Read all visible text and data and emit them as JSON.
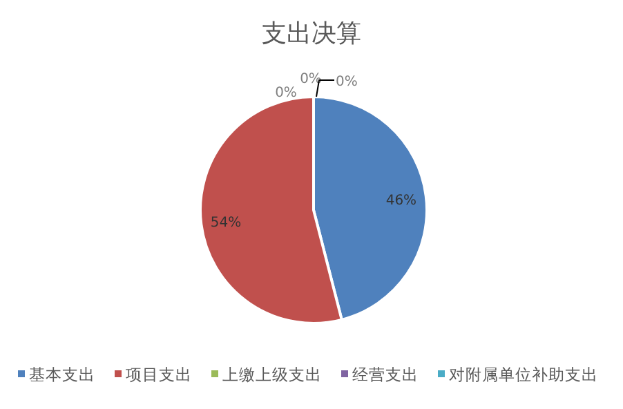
{
  "chart_data": {
    "type": "pie",
    "title": "支出决算",
    "categories": [
      "基本支出",
      "项目支出",
      "上缴上级支出",
      "经营支出",
      "对附属单位补助支出"
    ],
    "values": [
      46,
      54,
      0,
      0,
      0
    ],
    "colors": [
      "#4f81bd",
      "#c0504d",
      "#9bbb59",
      "#8064a2",
      "#4bacc6"
    ],
    "value_labels": [
      "46%",
      "54%",
      "0%",
      "0%",
      "0%"
    ],
    "legend": "bottom"
  }
}
